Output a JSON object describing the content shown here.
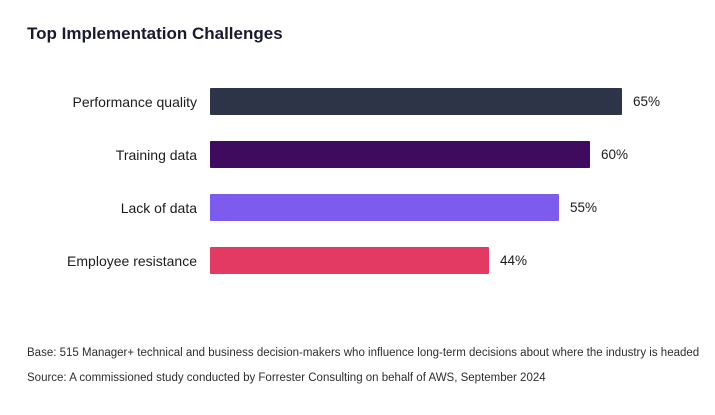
{
  "title": "Top Implementation Challenges",
  "chart_data": {
    "type": "bar",
    "orientation": "horizontal",
    "title": "Top Implementation Challenges",
    "categories": [
      "Performance quality",
      "Training data",
      "Lack of data",
      "Employee resistance"
    ],
    "values": [
      65,
      60,
      55,
      44
    ],
    "value_labels": [
      "65%",
      "60%",
      "55%",
      "44%"
    ],
    "colors": [
      "#2e3447",
      "#3e0b5e",
      "#7e5bef",
      "#e33a64"
    ],
    "xlim": [
      0,
      100
    ],
    "grid": false,
    "legend": false,
    "data_labels_position": "right-of-bar"
  },
  "footer": {
    "base": "Base: 515 Manager+ technical and business decision-makers who influence long-term decisions about where the industry is headed",
    "source": "Source: A commissioned study conducted by Forrester Consulting on behalf of AWS, September 2024"
  }
}
